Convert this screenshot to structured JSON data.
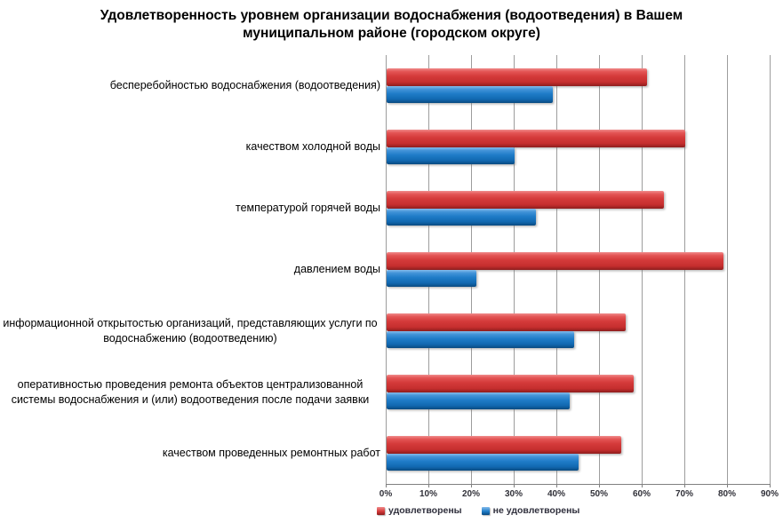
{
  "title": "Удовлетворенность уровнем организации водоснабжения (водоотведения) в Вашем муниципальном районе (городском округе)",
  "chart_data": {
    "type": "bar",
    "orientation": "horizontal",
    "title": "Удовлетворенность уровнем организации водоснабжения (водоотведения) в Вашем муниципальном районе (городском округе)",
    "categories": [
      "бесперебойностью  водоснабжения (водоотведения)",
      "качеством холодной воды",
      "температурой  горячей воды",
      "давлением воды",
      "информационной открытостью  организаций, представляющих услуги по  водоснабжению (водоотведению)",
      "оперативностью проведения ремонта  объектов централизованной системы  водоснабжения и (или) водоотведения после  подачи заявки",
      "качеством проведенных ремонтных  работ"
    ],
    "series": [
      {
        "name": "удовлетворены",
        "color": "#d43a3a",
        "values": [
          61,
          70,
          65,
          79,
          56,
          58,
          55
        ]
      },
      {
        "name": "не удовлетворены",
        "color": "#1f7cc8",
        "values": [
          39,
          30,
          35,
          21,
          44,
          43,
          45
        ]
      }
    ],
    "x_ticks": [
      "0%",
      "10%",
      "20%",
      "30%",
      "40%",
      "50%",
      "60%",
      "70%",
      "80%",
      "90%"
    ],
    "xlim": [
      0,
      90
    ],
    "xlabel": "",
    "ylabel": "",
    "grid": "vertical",
    "legend_position": "bottom-left"
  },
  "colors": {
    "satisfied_bar": "#d43a3a",
    "unsatisfied_bar": "#1f7cc8",
    "gridline": "#9d9d9d",
    "axis_line": "#808080",
    "text": "#000000"
  }
}
